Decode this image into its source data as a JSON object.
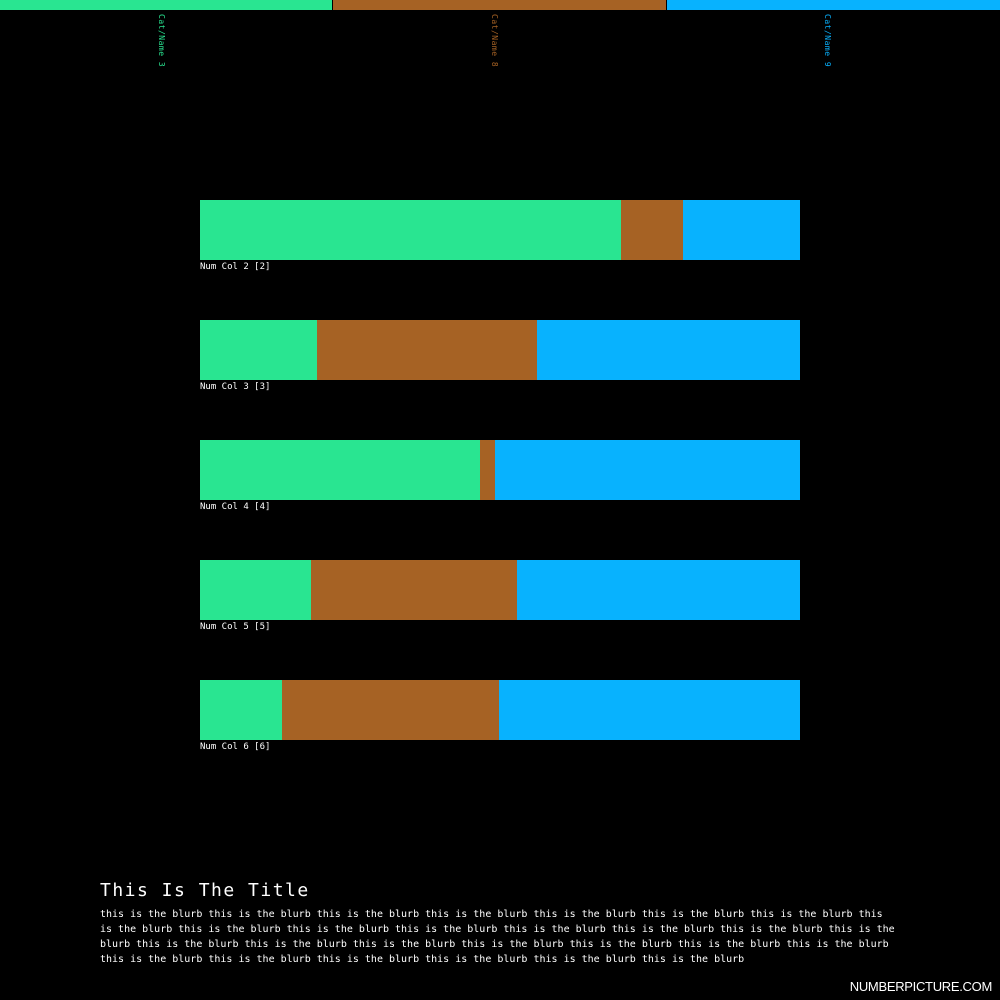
{
  "chart_data": {
    "type": "bar",
    "orientation": "horizontal",
    "stacked": "percent",
    "title": "This Is The Title",
    "blurb": "this is the blurb this is the blurb this is the blurb this is the blurb this is the blurb this is the blurb this is the blurb this is the blurb this is the blurb this is the blurb this is the blurb this is the blurb this is the blurb this is the blurb this is the blurb this is the blurb this is the blurb this is the blurb this is the blurb this is the blurb this is the blurb this is the blurb this is the blurb this is the blurb this is the blurb this is the blurb this is the blurb this is the blurb",
    "categories": [
      "Num Col 2 [2]",
      "Num Col 3 [3]",
      "Num Col 4 [4]",
      "Num Col 5 [5]",
      "Num Col 6 [6]"
    ],
    "series": [
      {
        "name": "Cat/Name 3",
        "color": "#29e591",
        "values": [
          70.2,
          19.5,
          46.7,
          18.5,
          13.7
        ]
      },
      {
        "name": "Cat/Name 8",
        "color": "#a66224",
        "values": [
          10.3,
          36.7,
          2.5,
          34.3,
          36.2
        ]
      },
      {
        "name": "Cat/Name 9",
        "color": "#08b2fe",
        "values": [
          19.5,
          43.8,
          50.8,
          47.2,
          50.1
        ]
      }
    ],
    "legend": "top"
  },
  "brand": "NUMBERPICTURE.COM"
}
